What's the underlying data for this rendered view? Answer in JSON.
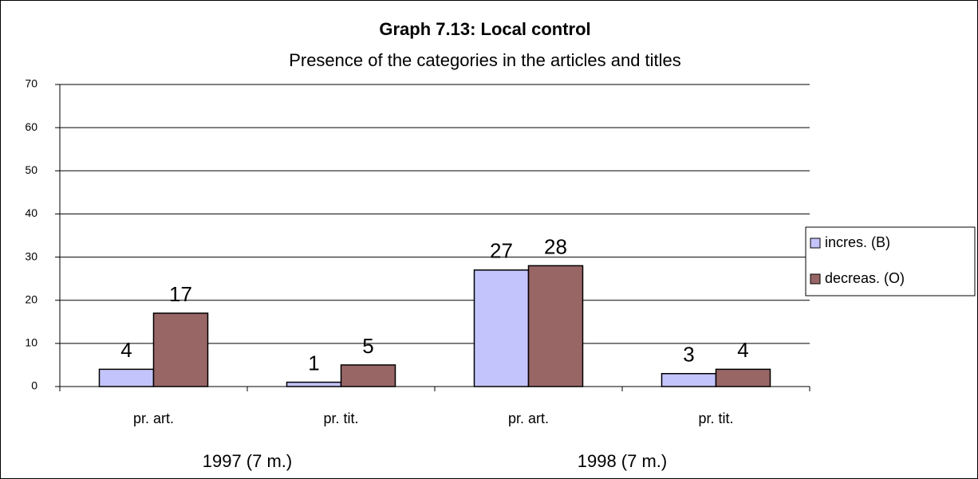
{
  "chart_data": {
    "type": "bar",
    "title": "Graph 7.13: Local control",
    "subtitle": "Presence of the categories in the articles and titles",
    "categories": [
      "pr. art.",
      "pr. tit.",
      "pr. art.",
      "pr. tit."
    ],
    "x_groups": [
      "1997 (7 m.)",
      "1998 (7 m.)"
    ],
    "series": [
      {
        "name": "incres. (B)",
        "color": "#c4c4fc",
        "values": [
          4,
          1,
          27,
          3
        ]
      },
      {
        "name": "decreas. (O)",
        "color": "#996666",
        "values": [
          17,
          5,
          28,
          4
        ]
      }
    ],
    "ylim": [
      0,
      70
    ],
    "yticks": [
      0,
      10,
      20,
      30,
      40,
      50,
      60,
      70
    ],
    "grid": true,
    "legend": "right"
  }
}
